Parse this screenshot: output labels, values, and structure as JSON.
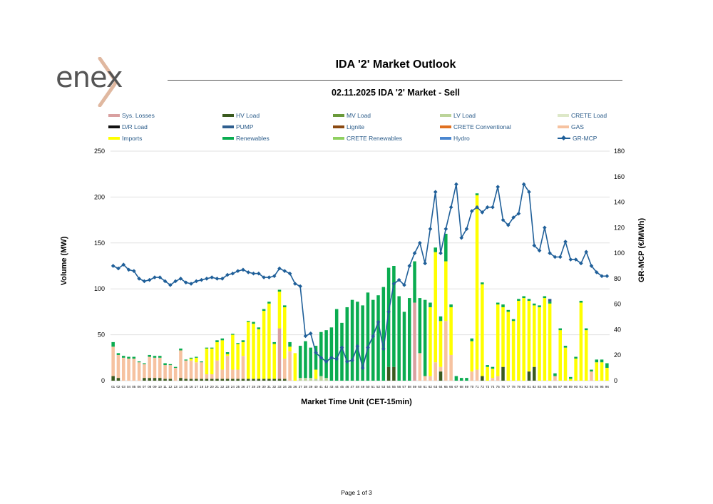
{
  "header": {
    "logo_text": "enex",
    "report_title": "IDA '2' Market Outlook"
  },
  "footer": {
    "page": "Page 1 of 3"
  },
  "colors": {
    "Sys. Losses": "#d9a0a0",
    "HV Load": "#3a5a1e",
    "MV Load": "#6a9a3a",
    "LV Load": "#bcd49a",
    "CRETE Load": "#dde8c8",
    "D/R Load": "#111111",
    "PUMP": "#2f5f8f",
    "Lignite": "#8b4a12",
    "CRETE Conventional": "#e07020",
    "GAS": "#f6c2a0",
    "Imports": "#ffff00",
    "Renewables": "#0aac50",
    "CRETE Renewables": "#8fd060",
    "Hydro": "#4a86d0",
    "GR-MCP": "#1f5f99",
    "grid": "#e0e0e0"
  },
  "chart_data": {
    "type": "bar",
    "title": "02.11.2025  IDA '2' Market - Sell",
    "xlabel": "Market Time Unit (CET-15min)",
    "ylabel": "Volume (MW)",
    "y2label": "GR-MCP (€/MWh)",
    "ylim": [
      0,
      250
    ],
    "y2lim": [
      0,
      180
    ],
    "yticks": [
      0,
      50,
      100,
      150,
      200,
      250
    ],
    "y2ticks": [
      0,
      20,
      40,
      60,
      80,
      100,
      120,
      140,
      160,
      180
    ],
    "stacked": true,
    "grid": true,
    "legend_position": "top",
    "legend": [
      "Sys. Losses",
      "HV Load",
      "MV Load",
      "LV Load",
      "CRETE Load",
      "D/R Load",
      "PUMP",
      "Lignite",
      "CRETE Conventional",
      "GAS",
      "Imports",
      "Renewables",
      "CRETE Renewables",
      "Hydro",
      "GR-MCP"
    ],
    "categories": [
      "01",
      "02",
      "03",
      "04",
      "05",
      "06",
      "07",
      "08",
      "09",
      "10",
      "11",
      "12",
      "13",
      "14",
      "15",
      "16",
      "17",
      "18",
      "19",
      "20",
      "21",
      "22",
      "23",
      "24",
      "25",
      "26",
      "27",
      "28",
      "29",
      "30",
      "31",
      "32",
      "33",
      "34",
      "35",
      "36",
      "37",
      "38",
      "39",
      "40",
      "41",
      "42",
      "43",
      "44",
      "45",
      "46",
      "47",
      "48",
      "49",
      "50",
      "51",
      "52",
      "53",
      "54",
      "55",
      "56",
      "57",
      "58",
      "59",
      "60",
      "61",
      "62",
      "63",
      "64",
      "65",
      "66",
      "67",
      "68",
      "69",
      "70",
      "71",
      "72",
      "73",
      "74",
      "75",
      "76",
      "77",
      "78",
      "79",
      "80",
      "81",
      "82",
      "83",
      "84",
      "85",
      "86",
      "87",
      "88",
      "89",
      "90",
      "91",
      "92",
      "93",
      "94",
      "95",
      "96"
    ],
    "series": [
      {
        "name": "HV Load",
        "values": [
          5,
          3,
          0,
          0,
          0,
          0,
          3,
          3,
          3,
          3,
          2,
          2,
          0,
          3,
          2,
          2,
          2,
          2,
          2,
          2,
          2,
          2,
          2,
          2,
          2,
          2,
          2,
          2,
          2,
          2,
          2,
          2,
          2,
          2,
          0,
          0,
          0,
          0,
          0,
          0,
          0,
          0,
          0,
          0,
          0,
          0,
          0,
          0,
          0,
          0,
          0,
          0,
          0,
          15,
          15,
          0,
          0,
          0,
          0,
          0,
          0,
          0,
          0,
          10,
          0,
          0,
          0,
          0,
          0,
          0,
          0,
          5,
          0,
          0,
          0,
          15,
          0,
          0,
          0,
          0,
          10,
          15,
          0,
          0,
          0,
          0,
          0,
          0,
          0,
          0,
          0,
          0,
          0,
          0,
          0,
          0
        ]
      },
      {
        "name": "Sys. Losses",
        "values": [
          0,
          0,
          0,
          0,
          0,
          0,
          0,
          0,
          0,
          0,
          0,
          0,
          0,
          0,
          0,
          0,
          0,
          0,
          0,
          0,
          0,
          0,
          0,
          0,
          0,
          0,
          0,
          0,
          0,
          0,
          0,
          0,
          55,
          0,
          0,
          0,
          0,
          0,
          0,
          0,
          0,
          0,
          0,
          0,
          0,
          0,
          0,
          0,
          0,
          0,
          0,
          0,
          0,
          0,
          0,
          0,
          0,
          0,
          85,
          0,
          0,
          0,
          0,
          0,
          0,
          0,
          0,
          0,
          0,
          0,
          0,
          0,
          0,
          0,
          0,
          0,
          0,
          0,
          0,
          0,
          0,
          0,
          0,
          0,
          0,
          0,
          0,
          0,
          0,
          0,
          0,
          0,
          0,
          0,
          0,
          0
        ]
      },
      {
        "name": "LV Load",
        "values": [
          0,
          0,
          0,
          0,
          0,
          0,
          0,
          0,
          0,
          0,
          0,
          0,
          0,
          0,
          0,
          0,
          0,
          0,
          0,
          0,
          0,
          0,
          0,
          0,
          0,
          0,
          0,
          0,
          0,
          0,
          0,
          0,
          0,
          0,
          0,
          0,
          3,
          3,
          3,
          2,
          5,
          3,
          0,
          0,
          0,
          0,
          0,
          0,
          0,
          0,
          0,
          0,
          0,
          0,
          0,
          0,
          0,
          0,
          0,
          0,
          0,
          0,
          0,
          0,
          0,
          0,
          0,
          0,
          0,
          0,
          0,
          0,
          0,
          0,
          0,
          0,
          0,
          0,
          0,
          0,
          0,
          0,
          0,
          0,
          0,
          0,
          0,
          0,
          0,
          0,
          0,
          0,
          0,
          0,
          0,
          0
        ]
      },
      {
        "name": "GAS",
        "values": [
          32,
          25,
          25,
          24,
          24,
          20,
          15,
          23,
          22,
          22,
          15,
          15,
          14,
          30,
          20,
          20,
          18,
          18,
          5,
          5,
          20,
          10,
          25,
          10,
          10,
          25,
          0,
          0,
          0,
          0,
          0,
          0,
          0,
          22,
          32,
          0,
          0,
          0,
          0,
          0,
          0,
          0,
          0,
          0,
          0,
          0,
          0,
          0,
          0,
          0,
          0,
          0,
          0,
          0,
          0,
          0,
          0,
          0,
          0,
          30,
          5,
          5,
          20,
          5,
          65,
          28,
          0,
          0,
          0,
          10,
          12,
          0,
          0,
          3,
          5,
          0,
          0,
          0,
          0,
          0,
          0,
          0,
          0,
          0,
          0,
          5,
          0,
          0,
          0,
          0,
          0,
          0,
          10,
          0,
          0,
          0
        ]
      },
      {
        "name": "Imports",
        "values": [
          0,
          0,
          0,
          0,
          0,
          0,
          0,
          0,
          0,
          0,
          0,
          0,
          0,
          0,
          0,
          2,
          5,
          0,
          28,
          28,
          20,
          32,
          2,
          38,
          28,
          15,
          62,
          60,
          54,
          74,
          82,
          38,
          40,
          56,
          5,
          30,
          0,
          0,
          0,
          10,
          0,
          0,
          0,
          0,
          0,
          0,
          0,
          0,
          0,
          0,
          0,
          0,
          0,
          0,
          0,
          0,
          0,
          0,
          0,
          0,
          0,
          75,
          120,
          50,
          65,
          52,
          0,
          0,
          0,
          33,
          190,
          100,
          15,
          10,
          78,
          65,
          75,
          65,
          87,
          90,
          77,
          67,
          80,
          90,
          84,
          0,
          55,
          36,
          2,
          24,
          85,
          55,
          0,
          20,
          20,
          14
        ]
      },
      {
        "name": "Renewables",
        "values": [
          5,
          2,
          2,
          2,
          2,
          1,
          1,
          2,
          2,
          2,
          2,
          1,
          1,
          2,
          1,
          1,
          1,
          1,
          1,
          1,
          2,
          2,
          2,
          1,
          1,
          2,
          1,
          2,
          2,
          2,
          2,
          2,
          2,
          2,
          5,
          0,
          35,
          40,
          33,
          26,
          48,
          52,
          58,
          78,
          63,
          80,
          88,
          86,
          82,
          96,
          88,
          93,
          102,
          108,
          110,
          92,
          75,
          90,
          45,
          60,
          83,
          5,
          5,
          5,
          30,
          3,
          5,
          3,
          3,
          3,
          2,
          2,
          2,
          2,
          2,
          3,
          2,
          2,
          2,
          2,
          2,
          2,
          2,
          2,
          2,
          3,
          2,
          2,
          2,
          2,
          2,
          2,
          2,
          3,
          3,
          5
        ]
      },
      {
        "name": "PUMP",
        "values": [
          0,
          0,
          0,
          0,
          0,
          0,
          0,
          0,
          0,
          0,
          0,
          0,
          0,
          0,
          0,
          0,
          0,
          0,
          0,
          0,
          0,
          0,
          0,
          0,
          0,
          0,
          0,
          0,
          0,
          0,
          0,
          0,
          0,
          0,
          0,
          0,
          0,
          0,
          0,
          0,
          0,
          0,
          0,
          0,
          0,
          0,
          0,
          0,
          0,
          0,
          0,
          0,
          0,
          0,
          0,
          0,
          0,
          0,
          0,
          0,
          0,
          0,
          0,
          0,
          0,
          0,
          0,
          0,
          0,
          0,
          0,
          0,
          0,
          0,
          0,
          0,
          0,
          0,
          0,
          0,
          0,
          0,
          0,
          0,
          3,
          0,
          0,
          0,
          0,
          0,
          0,
          0,
          0,
          0,
          0,
          0
        ]
      }
    ],
    "line": {
      "name": "GR-MCP",
      "values": [
        90,
        88,
        91,
        87,
        86,
        80,
        78,
        79,
        81,
        81,
        78,
        75,
        78,
        80,
        77,
        76,
        78,
        79,
        80,
        81,
        80,
        80,
        83,
        84,
        86,
        87,
        85,
        84,
        84,
        81,
        81,
        82,
        88,
        86,
        84,
        76,
        74,
        35,
        37,
        22,
        18,
        15,
        18,
        17,
        26,
        15,
        16,
        27,
        10,
        26,
        35,
        46,
        25,
        54,
        76,
        79,
        75,
        90,
        100,
        108,
        92,
        119,
        148,
        100,
        119,
        136,
        154,
        112,
        119,
        133,
        136,
        132,
        136,
        136,
        152,
        126,
        122,
        128,
        131,
        154,
        148,
        106,
        102,
        120,
        100,
        97,
        97,
        109,
        95,
        95,
        92,
        101,
        90,
        85,
        82,
        82
      ]
    }
  }
}
